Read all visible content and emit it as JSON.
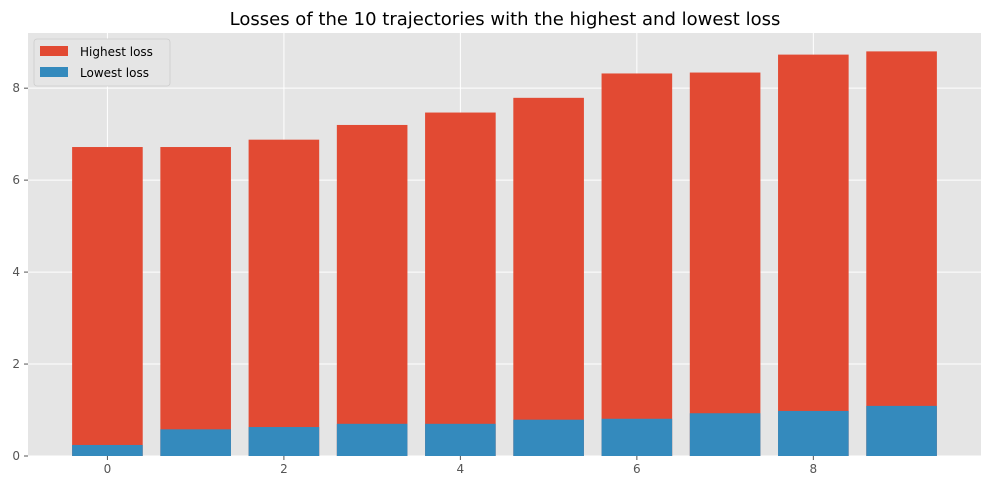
{
  "chart_data": {
    "type": "bar",
    "title": "Losses of the 10 trajectories with the highest and lowest loss",
    "xlabel": "",
    "ylabel": "",
    "x": [
      0,
      1,
      2,
      3,
      4,
      5,
      6,
      7,
      8,
      9
    ],
    "x_ticks": [
      "0",
      "2",
      "4",
      "6",
      "8"
    ],
    "y_ticks": [
      "0",
      "2",
      "4",
      "6",
      "8"
    ],
    "xlim": [
      -0.9,
      9.9
    ],
    "ylim": [
      0,
      9.2
    ],
    "grid": true,
    "legend_position": "top-left",
    "overlay": true,
    "series": [
      {
        "name": "Highest loss",
        "color": "#E24A33",
        "values": [
          6.72,
          6.72,
          6.88,
          7.2,
          7.47,
          7.79,
          8.32,
          8.34,
          8.73,
          8.8
        ]
      },
      {
        "name": "Lowest loss",
        "color": "#348ABD",
        "values": [
          0.24,
          0.58,
          0.63,
          0.7,
          0.7,
          0.79,
          0.81,
          0.93,
          0.98,
          1.09
        ]
      }
    ],
    "colors": {
      "plot_background": "#E5E5E5",
      "grid": "#FFFFFF",
      "tick_text": "#555555"
    }
  }
}
